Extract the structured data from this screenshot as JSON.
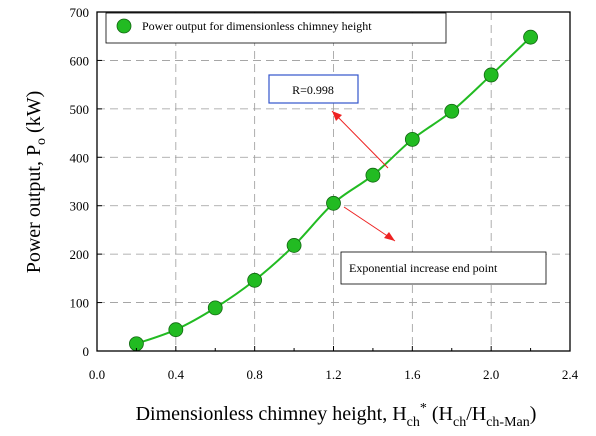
{
  "chart_data": {
    "type": "scatter",
    "x": [
      0.2,
      0.4,
      0.6,
      0.8,
      1.0,
      1.2,
      1.4,
      1.6,
      1.8,
      2.0,
      2.2
    ],
    "series": [
      {
        "name": "Power output for dimensionless chimney height",
        "values": [
          15,
          44,
          89,
          146,
          218,
          305,
          363,
          437,
          495,
          570,
          648
        ],
        "color": "#22bb22",
        "fit_line": true
      }
    ],
    "xlabel": {
      "text": "Dimensionless chimney height, H",
      "sub1": "ch",
      "sup": "*",
      "paren_open": " (H",
      "sub2": "ch",
      "slash": "/H",
      "sub3": "ch-Man",
      "paren_close": ")"
    },
    "ylabel": {
      "text": "Power output, P",
      "sub": "o",
      "unit": " (kW)"
    },
    "xlim": [
      0.0,
      2.4
    ],
    "ylim": [
      0,
      700
    ],
    "xticks": [
      "0.0",
      "0.4",
      "0.8",
      "1.2",
      "1.6",
      "2.0",
      "2.4"
    ],
    "yticks": [
      "0",
      "100",
      "200",
      "300",
      "400",
      "500",
      "600",
      "700"
    ],
    "grid": true,
    "legend_position": "top-left",
    "annotations": [
      {
        "text": "R=0.998",
        "border_color": "#3355cc",
        "arrow_color": "#ee2222",
        "target": [
          1.6,
          437
        ]
      },
      {
        "text": "Exponential increase end point",
        "border_color": "#000000",
        "arrow_color": "#ee2222",
        "target": [
          1.2,
          305
        ]
      }
    ]
  }
}
